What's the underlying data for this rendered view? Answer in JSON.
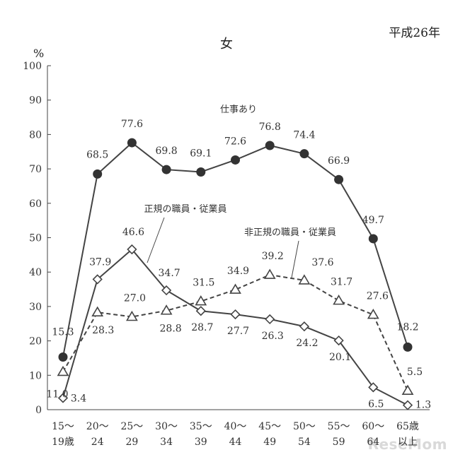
{
  "header": {
    "era_label": "平成26年",
    "title": "女",
    "unit": "%",
    "watermark": "ReseMom"
  },
  "chart_data": {
    "type": "line",
    "title": "女",
    "ylabel": "%",
    "ylim": [
      0,
      100
    ],
    "yticks": [
      0,
      10,
      20,
      30,
      40,
      50,
      60,
      70,
      80,
      90,
      100
    ],
    "grid": false,
    "categories": [
      [
        "15〜",
        "19歳"
      ],
      [
        "20〜",
        "24"
      ],
      [
        "25〜",
        "29"
      ],
      [
        "30〜",
        "34"
      ],
      [
        "35〜",
        "39"
      ],
      [
        "40〜",
        "44"
      ],
      [
        "45〜",
        "49"
      ],
      [
        "50〜",
        "54"
      ],
      [
        "55〜",
        "59"
      ],
      [
        "60〜",
        "64"
      ],
      [
        "65歳",
        "以上"
      ]
    ],
    "series": [
      {
        "name": "仕事あり",
        "marker": "circle",
        "dash": false,
        "values": [
          15.3,
          68.5,
          77.6,
          69.8,
          69.1,
          72.6,
          76.8,
          74.4,
          66.9,
          49.7,
          18.2
        ]
      },
      {
        "name": "正規の職員・従業員",
        "marker": "diamond",
        "dash": false,
        "values": [
          3.4,
          37.9,
          46.6,
          34.7,
          28.7,
          27.7,
          26.3,
          24.2,
          20.1,
          6.5,
          1.3
        ]
      },
      {
        "name": "非正規の職員・従業員",
        "marker": "triangle",
        "dash": true,
        "values": [
          11.0,
          28.3,
          27.0,
          28.8,
          31.5,
          34.9,
          39.2,
          37.6,
          31.7,
          27.6,
          5.5
        ]
      }
    ]
  }
}
